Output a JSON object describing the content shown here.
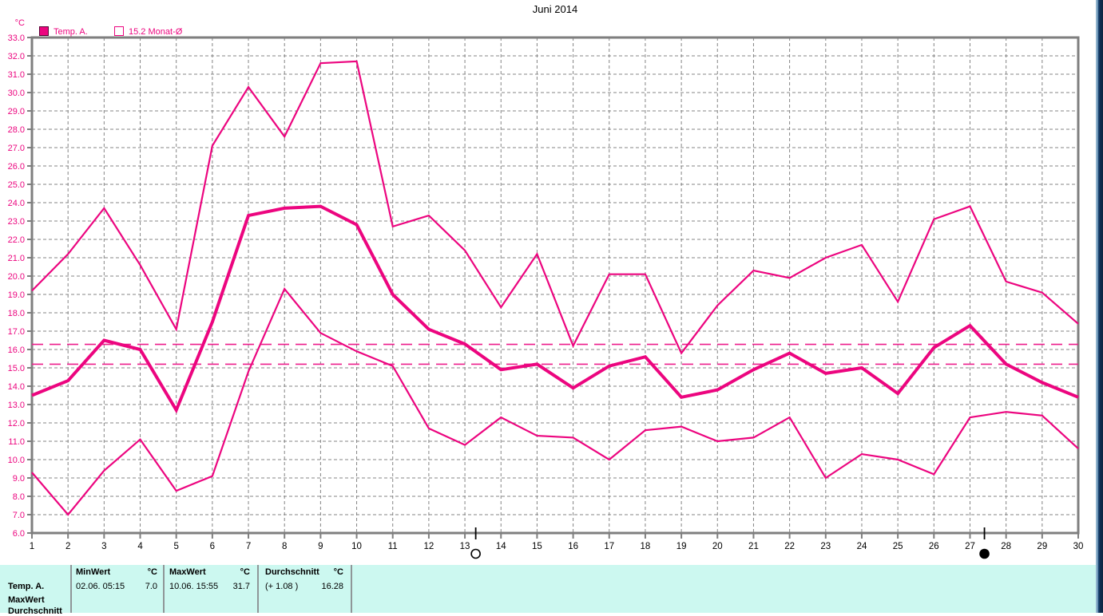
{
  "window": {
    "title": "Juni 2014"
  },
  "legend": {
    "unit_label": "°C",
    "items": [
      {
        "label": "Temp. A.",
        "swatch": "filled"
      },
      {
        "label": "15.2 Monat-Ø",
        "swatch": "open"
      }
    ]
  },
  "chart_data": {
    "type": "line",
    "title": "Juni 2014",
    "ylabel": "°C",
    "ylim": [
      6,
      33
    ],
    "ytick_step": 1,
    "grid": true,
    "legend_position": "top-left",
    "days": [
      1,
      2,
      3,
      4,
      5,
      6,
      7,
      8,
      9,
      10,
      11,
      12,
      13,
      14,
      15,
      16,
      17,
      18,
      19,
      20,
      21,
      22,
      23,
      24,
      25,
      26,
      27,
      28,
      29,
      30
    ],
    "series": [
      {
        "name": "max",
        "style": "thin",
        "values": [
          19.2,
          21.2,
          23.7,
          20.6,
          17.1,
          27.1,
          30.3,
          27.6,
          31.6,
          31.7,
          22.7,
          23.3,
          21.4,
          18.3,
          21.2,
          16.2,
          20.1,
          20.1,
          15.8,
          18.4,
          20.3,
          19.9,
          21.0,
          21.7,
          18.6,
          23.1,
          23.8,
          19.7,
          19.1,
          17.4
        ]
      },
      {
        "name": "avg",
        "style": "thick",
        "values": [
          13.5,
          14.3,
          16.5,
          16.0,
          12.7,
          17.5,
          23.3,
          23.7,
          23.8,
          22.8,
          19.0,
          17.1,
          16.3,
          14.9,
          15.2,
          13.9,
          15.1,
          15.6,
          13.4,
          13.8,
          14.9,
          15.8,
          14.7,
          15.0,
          13.6,
          16.1,
          17.3,
          15.2,
          14.2,
          13.4
        ]
      },
      {
        "name": "min",
        "style": "thin",
        "values": [
          9.3,
          7.0,
          9.4,
          11.1,
          8.3,
          9.1,
          14.8,
          19.3,
          16.9,
          15.9,
          15.1,
          11.7,
          10.8,
          12.3,
          11.3,
          11.2,
          10.0,
          11.6,
          11.8,
          11.0,
          11.2,
          12.3,
          9.0,
          10.3,
          10.0,
          9.2,
          12.3,
          12.6,
          12.4,
          10.6
        ]
      }
    ],
    "reference_lines": [
      {
        "name": "durchschnitt-monat",
        "value": 16.28
      },
      {
        "name": "monat-oe-norm",
        "value": 15.2
      }
    ],
    "moon_markers": [
      {
        "type": "full-moon",
        "day": 13.3
      },
      {
        "type": "new-moon",
        "day": 27.4
      }
    ],
    "colors": {
      "line": "#ec057f",
      "grid": "#848484",
      "axis": "#7f7f7f",
      "ytick_text": "#ec057f",
      "xtick_text": "#000000"
    }
  },
  "info_panel": {
    "bg": "#ccf8f0",
    "row_labels": [
      "Temp. A.",
      "MaxWert",
      "Durchschnitt"
    ],
    "columns": [
      {
        "header": "MinWert",
        "unit": "°C",
        "detail": "02.06.  05:15",
        "value": "7.0"
      },
      {
        "header": "MaxWert",
        "unit": "°C",
        "detail": "10.06.  15:55",
        "value": "31.7"
      },
      {
        "header": "Durchschnitt",
        "unit": "°C",
        "detail": "(+ 1.08 )",
        "value": "16.28"
      }
    ]
  }
}
